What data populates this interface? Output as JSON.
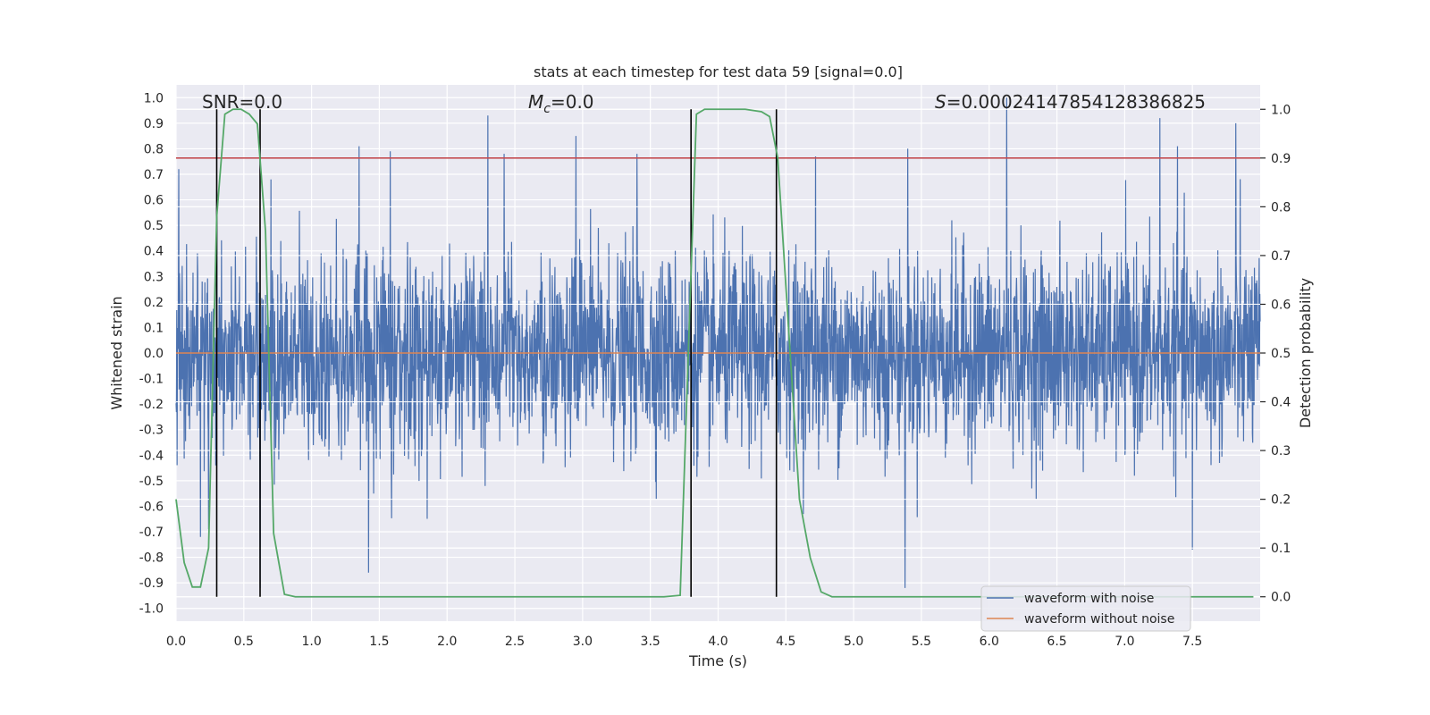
{
  "chart_data": {
    "type": "line",
    "title": "stats at each timestep for test data 59 [signal=0.0]",
    "xlabel": "Time (s)",
    "ylabel_left": "Whitened strain",
    "ylabel_right": "Detection probability",
    "xlim": [
      0.0,
      8.0
    ],
    "ylim_left": [
      -1.05,
      1.05
    ],
    "ylim_right": [
      -0.05,
      1.05
    ],
    "x_ticks": [
      "0.0",
      "0.5",
      "1.0",
      "1.5",
      "2.0",
      "2.5",
      "3.0",
      "3.5",
      "4.0",
      "4.5",
      "5.0",
      "5.5",
      "6.0",
      "6.5",
      "7.0",
      "7.5"
    ],
    "left_ticks": [
      "-1.0",
      "-0.9",
      "-0.8",
      "-0.7",
      "-0.6",
      "-0.5",
      "-0.4",
      "-0.3",
      "-0.2",
      "-0.1",
      "0.0",
      "0.1",
      "0.2",
      "0.3",
      "0.4",
      "0.5",
      "0.6",
      "0.7",
      "0.8",
      "0.9",
      "1.0"
    ],
    "right_ticks": [
      "0.0",
      "0.1",
      "0.2",
      "0.3",
      "0.4",
      "0.5",
      "0.6",
      "0.7",
      "0.8",
      "0.9",
      "1.0"
    ],
    "grid": true,
    "legend_placement": "lower-right",
    "annotations": {
      "snr": "SNR=0.0",
      "mc_symbol": "M",
      "mc_sub": "c",
      "mc_value": "=0.0",
      "s_symbol": "S",
      "s_value": "=0.00024147854128386825"
    },
    "series": [
      {
        "name": "waveform with noise",
        "axis": "left",
        "color": "#4c72b0",
        "description_range": [
          -0.93,
          1.0
        ],
        "spikes": [
          {
            "x": 0.02,
            "y": 0.72
          },
          {
            "x": 0.18,
            "y": -0.72
          },
          {
            "x": 0.24,
            "y": -0.69
          },
          {
            "x": 0.3,
            "y": 0.64
          },
          {
            "x": 0.62,
            "y": -0.92
          },
          {
            "x": 0.7,
            "y": 0.68
          },
          {
            "x": 1.35,
            "y": 0.81
          },
          {
            "x": 1.42,
            "y": -0.86
          },
          {
            "x": 1.58,
            "y": 0.79
          },
          {
            "x": 2.3,
            "y": 0.93
          },
          {
            "x": 2.42,
            "y": 0.78
          },
          {
            "x": 2.95,
            "y": 0.85
          },
          {
            "x": 3.4,
            "y": 0.78
          },
          {
            "x": 4.72,
            "y": 0.77
          },
          {
            "x": 5.38,
            "y": -0.92
          },
          {
            "x": 5.4,
            "y": 0.8
          },
          {
            "x": 6.13,
            "y": 1.0
          },
          {
            "x": 7.26,
            "y": 0.92
          },
          {
            "x": 7.39,
            "y": 0.81
          },
          {
            "x": 7.82,
            "y": 0.9
          },
          {
            "x": 7.5,
            "y": -0.77
          }
        ]
      },
      {
        "name": "waveform without noise",
        "axis": "left",
        "color": "#dd8452",
        "x": [
          0.0,
          8.0
        ],
        "y": [
          0.0,
          0.0
        ]
      },
      {
        "axis": "right",
        "color": "#55a868",
        "x": [
          0.0,
          0.06,
          0.12,
          0.18,
          0.24,
          0.3,
          0.36,
          0.42,
          0.48,
          0.54,
          0.6,
          0.66,
          0.72,
          0.8,
          0.88,
          1.0,
          2.0,
          3.0,
          3.6,
          3.72,
          3.78,
          3.84,
          3.9,
          4.0,
          4.2,
          4.32,
          4.38,
          4.44,
          4.52,
          4.6,
          4.68,
          4.76,
          4.84,
          5.0,
          6.0,
          7.0,
          7.95
        ],
        "y": [
          0.2,
          0.07,
          0.02,
          0.02,
          0.1,
          0.78,
          0.99,
          1.0,
          1.0,
          0.99,
          0.97,
          0.75,
          0.13,
          0.005,
          0.0,
          0.0,
          0.0,
          0.0,
          0.0,
          0.003,
          0.5,
          0.99,
          1.0,
          1.0,
          1.0,
          0.995,
          0.985,
          0.9,
          0.55,
          0.2,
          0.08,
          0.01,
          0.0,
          0.0,
          0.0,
          0.0,
          0.0
        ]
      }
    ],
    "threshold": {
      "axis": "right",
      "value": 0.9,
      "color": "#c44e52"
    },
    "vertical_markers": {
      "color": "#000000",
      "x": [
        0.3,
        0.62,
        3.8,
        4.43
      ]
    }
  }
}
